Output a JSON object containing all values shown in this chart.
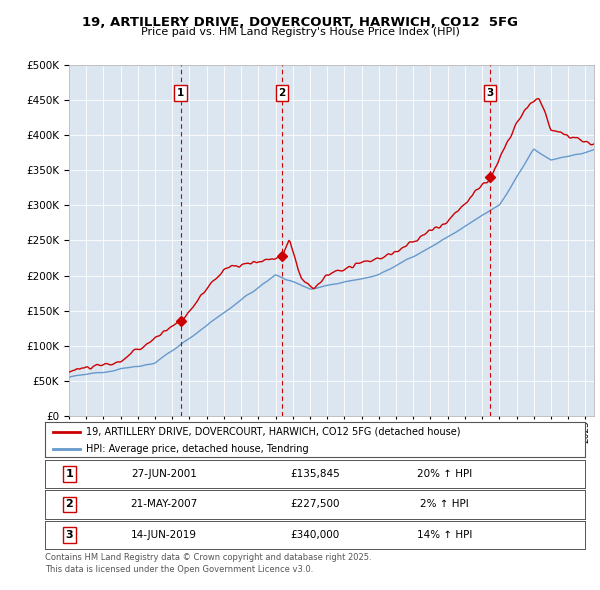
{
  "title": "19, ARTILLERY DRIVE, DOVERCOURT, HARWICH, CO12  5FG",
  "subtitle": "Price paid vs. HM Land Registry's House Price Index (HPI)",
  "legend_line1": "19, ARTILLERY DRIVE, DOVERCOURT, HARWICH, CO12 5FG (detached house)",
  "legend_line2": "HPI: Average price, detached house, Tendring",
  "sales": [
    {
      "num": 1,
      "date": "27-JUN-2001",
      "price": 135845,
      "year": 2001.49,
      "pct": "20%",
      "dir": "↑"
    },
    {
      "num": 2,
      "date": "21-MAY-2007",
      "price": 227500,
      "year": 2007.38,
      "pct": "2%",
      "dir": "↑"
    },
    {
      "num": 3,
      "date": "14-JUN-2019",
      "price": 340000,
      "year": 2019.45,
      "pct": "14%",
      "dir": "↑"
    }
  ],
  "footer1": "Contains HM Land Registry data © Crown copyright and database right 2025.",
  "footer2": "This data is licensed under the Open Government Licence v3.0.",
  "plot_bg_color": "#dce6f1",
  "line_color_red": "#cc0000",
  "line_color_blue": "#6699cc",
  "ylim": [
    0,
    500000
  ],
  "xlim_start": 1995,
  "xlim_end": 2025.5
}
